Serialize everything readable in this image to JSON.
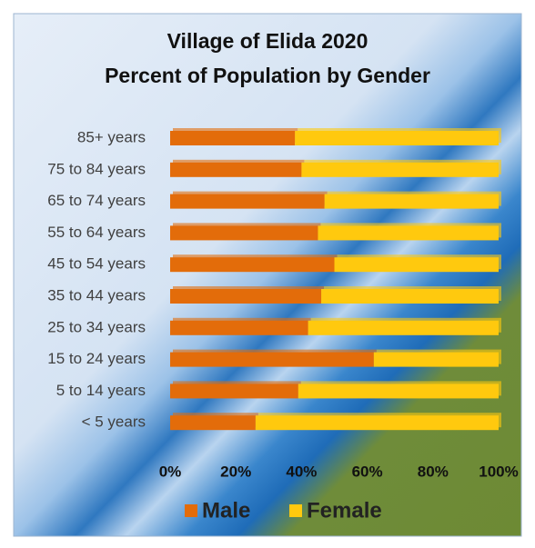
{
  "chart_data": {
    "type": "stacked-bar-horizontal",
    "title": [
      "Village of Elida 2020",
      "Percent of Population by Gender"
    ],
    "categories": [
      "85+ years",
      "75 to 84 years",
      "65 to 74 years",
      "55 to 64 years",
      "45 to 54 years",
      "35 to 44 years",
      "25 to 34 years",
      "15 to 24 years",
      "5 to 14 years",
      "< 5 years"
    ],
    "series": [
      {
        "name": "Male",
        "color": "#e36c0a",
        "values": [
          38,
          40,
          47,
          45,
          50,
          46,
          42,
          62,
          39,
          26
        ]
      },
      {
        "name": "Female",
        "color": "#ffc90e",
        "values": [
          62,
          60,
          53,
          55,
          50,
          54,
          58,
          38,
          61,
          74
        ]
      }
    ],
    "xlim": [
      0,
      100
    ],
    "xticks": [
      {
        "value": 0,
        "label": "0%"
      },
      {
        "value": 20,
        "label": "20%"
      },
      {
        "value": 40,
        "label": "40%"
      },
      {
        "value": 60,
        "label": "60%"
      },
      {
        "value": 80,
        "label": "80%"
      },
      {
        "value": 100,
        "label": "100%"
      }
    ],
    "legend": "bottom"
  }
}
